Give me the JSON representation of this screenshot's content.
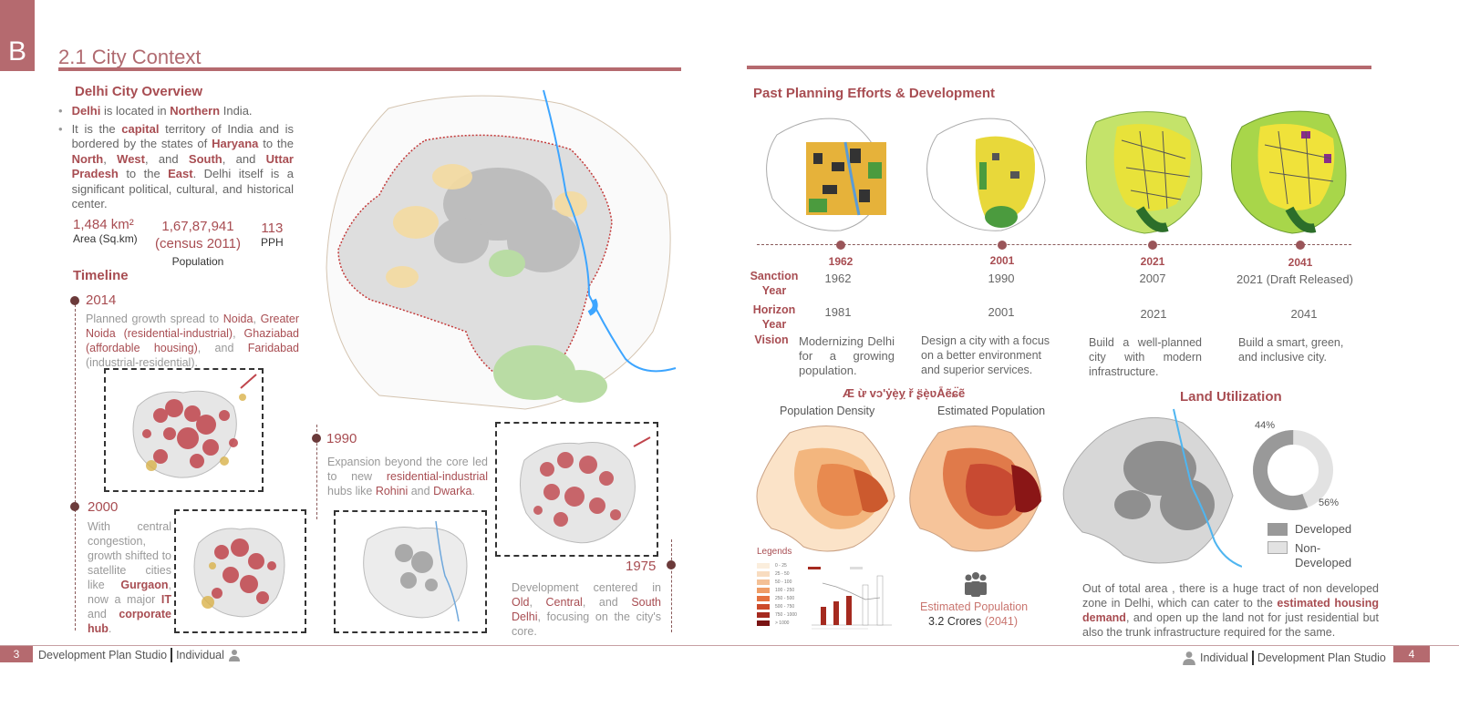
{
  "header": {
    "badge": "B",
    "title": "2.1 City  Context"
  },
  "overview": {
    "title": "Delhi  City Overview",
    "b1_p1": "Delhi",
    "b1_p2": " is located in ",
    "b1_p3": "Northern",
    "b1_p4": " India.",
    "b2_p1": "It is the ",
    "b2_p2": "capital",
    "b2_p3": " territory of India and is bordered by the states of ",
    "b2_p4": "Haryana",
    "b2_p5": " to the ",
    "b2_p6": "North",
    "b2_p7": ", ",
    "b2_p8": "West",
    "b2_p9": ", and ",
    "b2_p10": "South",
    "b2_p11": ", and ",
    "b2_p12": "Uttar Pradesh",
    "b2_p13": " to the ",
    "b2_p14": "East",
    "b2_p15": ". Delhi itself is a significant political, cultural, and historical center.",
    "stats": {
      "area_val": "1,484 km²",
      "area_lbl": "Area (Sq.km)",
      "pop_val1": "1,67,87,941",
      "pop_val2": "(census 2011)",
      "pop_lbl": "Population",
      "pph_val": "113",
      "pph_lbl": "PPH"
    }
  },
  "timeline": {
    "title": "Timeline",
    "y2014": {
      "year": "2014",
      "t1": "Planned growth spread to ",
      "t2": "Noida",
      "t3": ", ",
      "t4": "Greater Noida (residential-industrial)",
      "t5": ", ",
      "t6": "Ghaziabad (affordable housing)",
      "t7": ", and ",
      "t8": "Faridabad",
      "t9": " (industrial-residential)."
    },
    "y2000": {
      "year": "2000",
      "t1": "With central congestion, growth shifted to satellite cities like ",
      "t2": "Gurgaon",
      "t3": ", now a major ",
      "t4": "IT",
      "t5": " and ",
      "t6": "corporate hub",
      "t7": "."
    },
    "y1990": {
      "year": "1990",
      "t1": "Expansion beyond the core led to new ",
      "t2": "residential-industrial",
      "t3": " hubs like ",
      "t4": "Rohini",
      "t5": " and ",
      "t6": "Dwarka",
      "t7": "."
    },
    "y1975": {
      "year": "1975",
      "t1": "Development centered in ",
      "t2": "Old",
      "t3": ", ",
      "t4": "Central",
      "t5": ", and ",
      "t6": "South Delhi",
      "t7": ", focusing on the city's core."
    }
  },
  "planning": {
    "title": "Past Planning Efforts & Development",
    "plans": [
      {
        "label": "1962",
        "sanction": "1962",
        "horizon": "1981",
        "vision": "Modernizing Delhi for a growing population."
      },
      {
        "label": "2001",
        "sanction": "1990",
        "horizon": "2001",
        "vision": "Design a city with a focus on a better environment and superior services."
      },
      {
        "label": "2021",
        "sanction": "2007",
        "horizon": "2021",
        "vision": "Build a well-planned city with modern infrastructure."
      },
      {
        "label": "2041",
        "sanction": "2021 (Draft Released)",
        "horizon": "2041",
        "vision": "Build a smart, green, and inclusive city."
      }
    ],
    "row_sanction": "Sanction Year",
    "row_horizon": "Horizon Year",
    "row_vision": "Vision"
  },
  "demography": {
    "title": "Æ ừ vɔ'ẏẹ̀ỵ ř ʂ̈ẹ̀ʋẴẽɕ̈ẽ",
    "density_title": "Population Density",
    "estimated_title": "Estimated Population",
    "legends_title": "Legends",
    "legend_items": [
      "0 - 25",
      "25 - 50",
      "50 - 100",
      "100 - 250",
      "250 - 500",
      "500 - 750",
      "750 - 1000",
      "> 1000"
    ],
    "legend_colors": [
      "#fbeedd",
      "#f8dcc0",
      "#f4c095",
      "#ef9d67",
      "#e5723f",
      "#cc4a2a",
      "#a52a1f",
      "#7a1414"
    ],
    "est_lbl": "Estimated Population",
    "est_val": "3.2 Crores ",
    "est_year": "(2041)"
  },
  "land": {
    "title": "Land  Utilization",
    "developed_pct": 56,
    "non_developed_pct": 44,
    "pct_developed_lbl": "56%",
    "pct_non_lbl": "44%",
    "legend_developed": "Developed",
    "legend_non": "Non-\nDeveloped",
    "colors": {
      "developed": "#999999",
      "non": "#e2e2e2"
    },
    "p1": "Out of total area , there is a huge tract of non developed zone in Delhi, which can cater to the ",
    "p2": "estimated housing demand",
    "p3": ", and open up the land not for just residential but also the trunk infrastructure required for the same."
  },
  "footer": {
    "left_num": "3",
    "left_text": "Development Plan Studio",
    "left_individual": "Individual",
    "right_individual": "Individual",
    "right_text": "Development Plan Studio",
    "right_num": "4"
  }
}
